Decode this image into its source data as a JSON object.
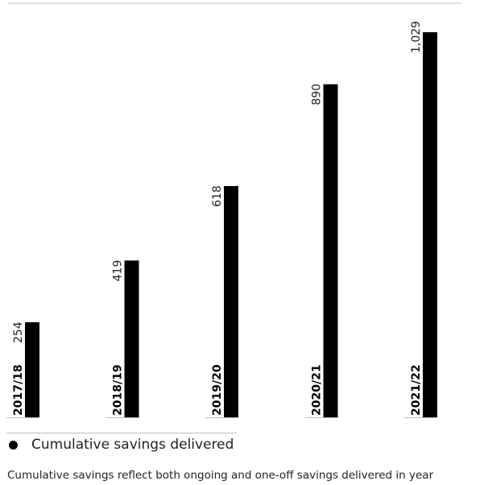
{
  "chart_data": {
    "type": "bar",
    "categories": [
      "2017/18",
      "2018/19",
      "2019/20",
      "2020/21",
      "2021/22"
    ],
    "series": [
      {
        "name": "Cumulative savings delivered",
        "values": [
          254,
          419,
          618,
          890,
          1029
        ]
      }
    ],
    "data_labels": [
      "254",
      "419",
      "618",
      "890",
      "1,029"
    ],
    "ylim": [
      0,
      1029
    ],
    "grid": false,
    "legend_position": "bottom-left",
    "bar_color": "#000000"
  },
  "legend": {
    "label": "Cumulative savings delivered"
  },
  "footnote": "Cumulative savings reflect both ongoing and one-off savings delivered in year"
}
